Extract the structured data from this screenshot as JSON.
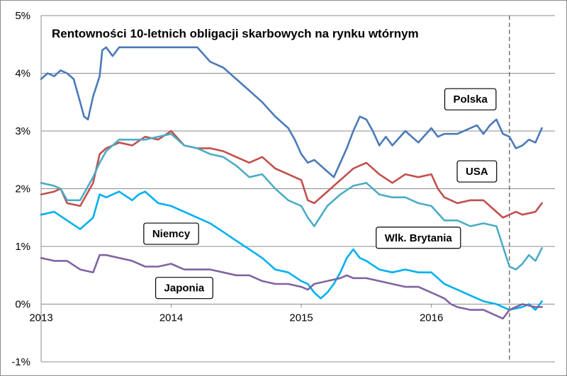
{
  "chart_data": {
    "type": "line",
    "title": "Rentowności 10-letnich obligacji skarbowych na rynku wtórnym",
    "xlabel": "",
    "ylabel": "",
    "x_unit": "year",
    "xlim": [
      2013.0,
      2016.95
    ],
    "ylim": [
      -1,
      5
    ],
    "x_ticks": [
      {
        "value": 2013,
        "label": "2013"
      },
      {
        "value": 2014,
        "label": "2014"
      },
      {
        "value": 2015,
        "label": "2015"
      },
      {
        "value": 2016,
        "label": "2016"
      }
    ],
    "y_ticks": [
      {
        "value": 5,
        "label": "5%"
      },
      {
        "value": 4,
        "label": "4%"
      },
      {
        "value": 3,
        "label": "3%"
      },
      {
        "value": 2,
        "label": "2%"
      },
      {
        "value": 1,
        "label": "1%"
      },
      {
        "value": 0,
        "label": "0%"
      },
      {
        "value": -1,
        "label": "-1%"
      }
    ],
    "grid": "horizontal",
    "vertical_marker": {
      "x": 2016.6,
      "style": "dashed"
    },
    "series": [
      {
        "name": "Polska",
        "color": "#4a7ab8",
        "label_at": [
          2016.3,
          3.55
        ],
        "x": [
          2013.0,
          2013.05,
          2013.1,
          2013.15,
          2013.2,
          2013.25,
          2013.3,
          2013.33,
          2013.36,
          2013.4,
          2013.45,
          2013.47,
          2013.5,
          2013.55,
          2013.6,
          2013.65,
          2013.7,
          2013.75,
          2013.8,
          2013.9,
          2014.0,
          2014.1,
          2014.2,
          2014.3,
          2014.4,
          2014.5,
          2014.6,
          2014.7,
          2014.8,
          2014.9,
          2014.95,
          2015.0,
          2015.05,
          2015.1,
          2015.2,
          2015.25,
          2015.3,
          2015.35,
          2015.4,
          2015.45,
          2015.5,
          2015.55,
          2015.6,
          2015.65,
          2015.7,
          2015.8,
          2015.9,
          2016.0,
          2016.05,
          2016.1,
          2016.2,
          2016.3,
          2016.35,
          2016.4,
          2016.45,
          2016.5,
          2016.55,
          2016.6,
          2016.65,
          2016.7,
          2016.75,
          2016.8,
          2016.85
        ],
        "values": [
          3.9,
          4.0,
          3.95,
          4.05,
          4.0,
          3.9,
          3.5,
          3.25,
          3.2,
          3.6,
          3.95,
          4.4,
          4.45,
          4.3,
          4.45,
          4.45,
          4.45,
          4.45,
          4.45,
          4.45,
          4.45,
          4.45,
          4.45,
          4.2,
          4.1,
          3.9,
          3.7,
          3.5,
          3.25,
          3.05,
          2.85,
          2.6,
          2.45,
          2.5,
          2.3,
          2.2,
          2.45,
          2.7,
          3.0,
          3.25,
          3.2,
          3.0,
          2.75,
          2.9,
          2.75,
          3.0,
          2.8,
          3.05,
          2.9,
          2.95,
          2.95,
          3.05,
          3.1,
          2.95,
          3.1,
          3.2,
          2.95,
          2.9,
          2.7,
          2.75,
          2.85,
          2.8,
          3.05
        ]
      },
      {
        "name": "USA",
        "color": "#c0504d",
        "label_at": [
          2016.35,
          2.3
        ],
        "x": [
          2013.0,
          2013.1,
          2013.15,
          2013.2,
          2013.3,
          2013.4,
          2013.45,
          2013.5,
          2013.6,
          2013.7,
          2013.8,
          2013.9,
          2014.0,
          2014.1,
          2014.2,
          2014.3,
          2014.4,
          2014.5,
          2014.6,
          2014.7,
          2014.8,
          2014.9,
          2015.0,
          2015.05,
          2015.1,
          2015.2,
          2015.3,
          2015.4,
          2015.5,
          2015.6,
          2015.7,
          2015.8,
          2015.9,
          2016.0,
          2016.05,
          2016.1,
          2016.2,
          2016.3,
          2016.4,
          2016.5,
          2016.55,
          2016.6,
          2016.65,
          2016.7,
          2016.8,
          2016.85
        ],
        "values": [
          1.9,
          1.95,
          2.0,
          1.75,
          1.7,
          2.1,
          2.6,
          2.7,
          2.8,
          2.75,
          2.9,
          2.85,
          3.0,
          2.75,
          2.7,
          2.7,
          2.65,
          2.55,
          2.45,
          2.55,
          2.35,
          2.25,
          2.15,
          1.8,
          1.75,
          1.95,
          2.15,
          2.35,
          2.45,
          2.25,
          2.1,
          2.25,
          2.2,
          2.25,
          2.0,
          1.85,
          1.75,
          1.8,
          1.8,
          1.6,
          1.5,
          1.55,
          1.6,
          1.55,
          1.6,
          1.75
        ]
      },
      {
        "name": "Wlk. Brytania",
        "color": "#4bacc6",
        "label_at": [
          2015.9,
          1.15
        ],
        "x": [
          2013.0,
          2013.1,
          2013.15,
          2013.2,
          2013.3,
          2013.4,
          2013.45,
          2013.5,
          2013.6,
          2013.7,
          2013.8,
          2013.9,
          2014.0,
          2014.1,
          2014.2,
          2014.3,
          2014.4,
          2014.5,
          2014.6,
          2014.7,
          2014.8,
          2014.9,
          2015.0,
          2015.05,
          2015.1,
          2015.2,
          2015.3,
          2015.4,
          2015.5,
          2015.6,
          2015.7,
          2015.8,
          2015.9,
          2016.0,
          2016.1,
          2016.2,
          2016.3,
          2016.4,
          2016.5,
          2016.55,
          2016.6,
          2016.65,
          2016.7,
          2016.75,
          2016.8,
          2016.85
        ],
        "values": [
          2.1,
          2.05,
          2.0,
          1.8,
          1.8,
          2.2,
          2.45,
          2.65,
          2.85,
          2.85,
          2.85,
          2.9,
          2.95,
          2.75,
          2.7,
          2.6,
          2.55,
          2.4,
          2.2,
          2.25,
          2.0,
          1.8,
          1.7,
          1.5,
          1.35,
          1.7,
          1.9,
          2.05,
          2.1,
          1.9,
          1.85,
          1.85,
          1.75,
          1.7,
          1.45,
          1.45,
          1.35,
          1.4,
          1.35,
          1.0,
          0.65,
          0.6,
          0.7,
          0.85,
          0.75,
          0.97
        ]
      },
      {
        "name": "Niemcy",
        "color": "#00b0f0",
        "label_at": [
          2014.0,
          1.22
        ],
        "x": [
          2013.0,
          2013.1,
          2013.2,
          2013.3,
          2013.4,
          2013.45,
          2013.5,
          2013.6,
          2013.7,
          2013.75,
          2013.8,
          2013.9,
          2014.0,
          2014.1,
          2014.2,
          2014.3,
          2014.4,
          2014.5,
          2014.6,
          2014.7,
          2014.8,
          2014.9,
          2015.0,
          2015.05,
          2015.1,
          2015.15,
          2015.2,
          2015.25,
          2015.3,
          2015.35,
          2015.4,
          2015.45,
          2015.5,
          2015.6,
          2015.7,
          2015.8,
          2015.9,
          2016.0,
          2016.1,
          2016.2,
          2016.3,
          2016.4,
          2016.5,
          2016.55,
          2016.6,
          2016.7,
          2016.75,
          2016.8,
          2016.85
        ],
        "values": [
          1.55,
          1.6,
          1.45,
          1.3,
          1.5,
          1.9,
          1.85,
          1.95,
          1.8,
          1.9,
          1.95,
          1.75,
          1.7,
          1.6,
          1.5,
          1.4,
          1.25,
          1.1,
          0.95,
          0.8,
          0.6,
          0.55,
          0.4,
          0.35,
          0.2,
          0.1,
          0.2,
          0.35,
          0.55,
          0.8,
          0.95,
          0.8,
          0.75,
          0.6,
          0.55,
          0.6,
          0.55,
          0.55,
          0.35,
          0.25,
          0.15,
          0.05,
          0.0,
          -0.05,
          -0.1,
          -0.05,
          0.0,
          -0.1,
          0.05
        ]
      },
      {
        "name": "Japonia",
        "color": "#8064a2",
        "label_at": [
          2014.1,
          0.28
        ],
        "x": [
          2013.0,
          2013.1,
          2013.2,
          2013.3,
          2013.4,
          2013.45,
          2013.5,
          2013.6,
          2013.7,
          2013.8,
          2013.9,
          2014.0,
          2014.1,
          2014.2,
          2014.3,
          2014.4,
          2014.5,
          2014.6,
          2014.7,
          2014.8,
          2014.9,
          2015.0,
          2015.05,
          2015.1,
          2015.2,
          2015.3,
          2015.35,
          2015.4,
          2015.5,
          2015.6,
          2015.7,
          2015.8,
          2015.9,
          2016.0,
          2016.1,
          2016.15,
          2016.2,
          2016.3,
          2016.4,
          2016.5,
          2016.55,
          2016.6,
          2016.7,
          2016.8,
          2016.85
        ],
        "values": [
          0.8,
          0.75,
          0.75,
          0.6,
          0.55,
          0.85,
          0.85,
          0.8,
          0.75,
          0.65,
          0.65,
          0.7,
          0.6,
          0.6,
          0.6,
          0.55,
          0.5,
          0.5,
          0.4,
          0.35,
          0.35,
          0.3,
          0.25,
          0.35,
          0.4,
          0.45,
          0.5,
          0.45,
          0.45,
          0.4,
          0.35,
          0.3,
          0.3,
          0.2,
          0.1,
          0.0,
          -0.05,
          -0.1,
          -0.1,
          -0.2,
          -0.25,
          -0.1,
          0.0,
          -0.05,
          -0.05
        ]
      }
    ]
  }
}
